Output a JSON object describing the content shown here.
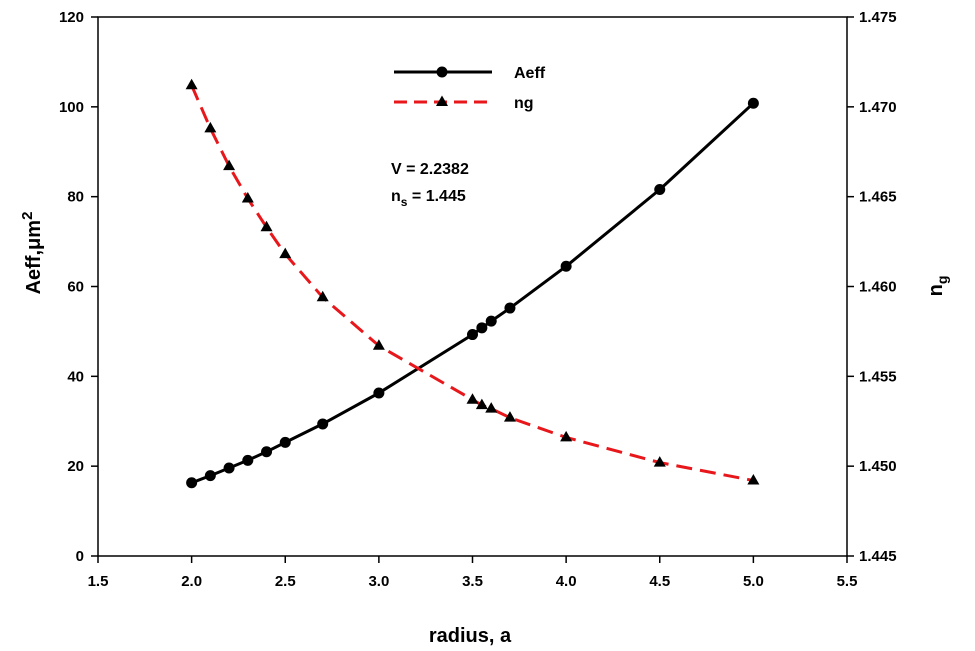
{
  "chart_data": {
    "type": "line",
    "xlabel": "radius, a",
    "ylabel_left": {
      "base": "Aeff,",
      "mu": "μ",
      "unit": "m",
      "sup": "2"
    },
    "ylabel_right": {
      "base": "n",
      "sub": "g"
    },
    "xlim": [
      1.5,
      5.5
    ],
    "ylim_left": [
      0,
      120
    ],
    "ylim_right": [
      1.445,
      1.475
    ],
    "x_ticks": [
      "1.5",
      "2.0",
      "2.5",
      "3.0",
      "3.5",
      "4.0",
      "4.5",
      "5.0",
      "5.5"
    ],
    "y_left_ticks": [
      "0",
      "20",
      "40",
      "60",
      "80",
      "100",
      "120"
    ],
    "y_right_ticks": [
      "1.445",
      "1.450",
      "1.455",
      "1.460",
      "1.465",
      "1.470",
      "1.475"
    ],
    "legend_position": "top-center",
    "series": [
      {
        "name": "Aeff",
        "axis": "left",
        "color": "#000000",
        "line": "solid",
        "marker": "circle",
        "x": [
          2.0,
          2.1,
          2.2,
          2.3,
          2.4,
          2.5,
          2.7,
          3.0,
          3.5,
          3.55,
          3.6,
          3.7,
          4.0,
          4.5,
          5.0
        ],
        "y": [
          16.3,
          17.9,
          19.6,
          21.3,
          23.2,
          25.3,
          29.4,
          36.3,
          49.3,
          50.8,
          52.3,
          55.2,
          64.5,
          81.6,
          100.8
        ]
      },
      {
        "name": "ng",
        "axis": "right",
        "color": "#e8171b",
        "line": "dashed",
        "marker": "triangle",
        "x": [
          2.0,
          2.1,
          2.2,
          2.3,
          2.4,
          2.5,
          2.7,
          3.0,
          3.5,
          3.55,
          3.6,
          3.7,
          4.0,
          4.5,
          5.0
        ],
        "y": [
          1.4712,
          1.4688,
          1.4667,
          1.4649,
          1.4633,
          1.4618,
          1.4594,
          1.4567,
          1.4537,
          1.4534,
          1.4532,
          1.4527,
          1.4516,
          1.4502,
          1.4492
        ]
      }
    ],
    "annotations": [
      {
        "text": "V = 2.2382"
      },
      {
        "main": "n",
        "sub": "s",
        "rest": " = 1.445"
      }
    ]
  }
}
